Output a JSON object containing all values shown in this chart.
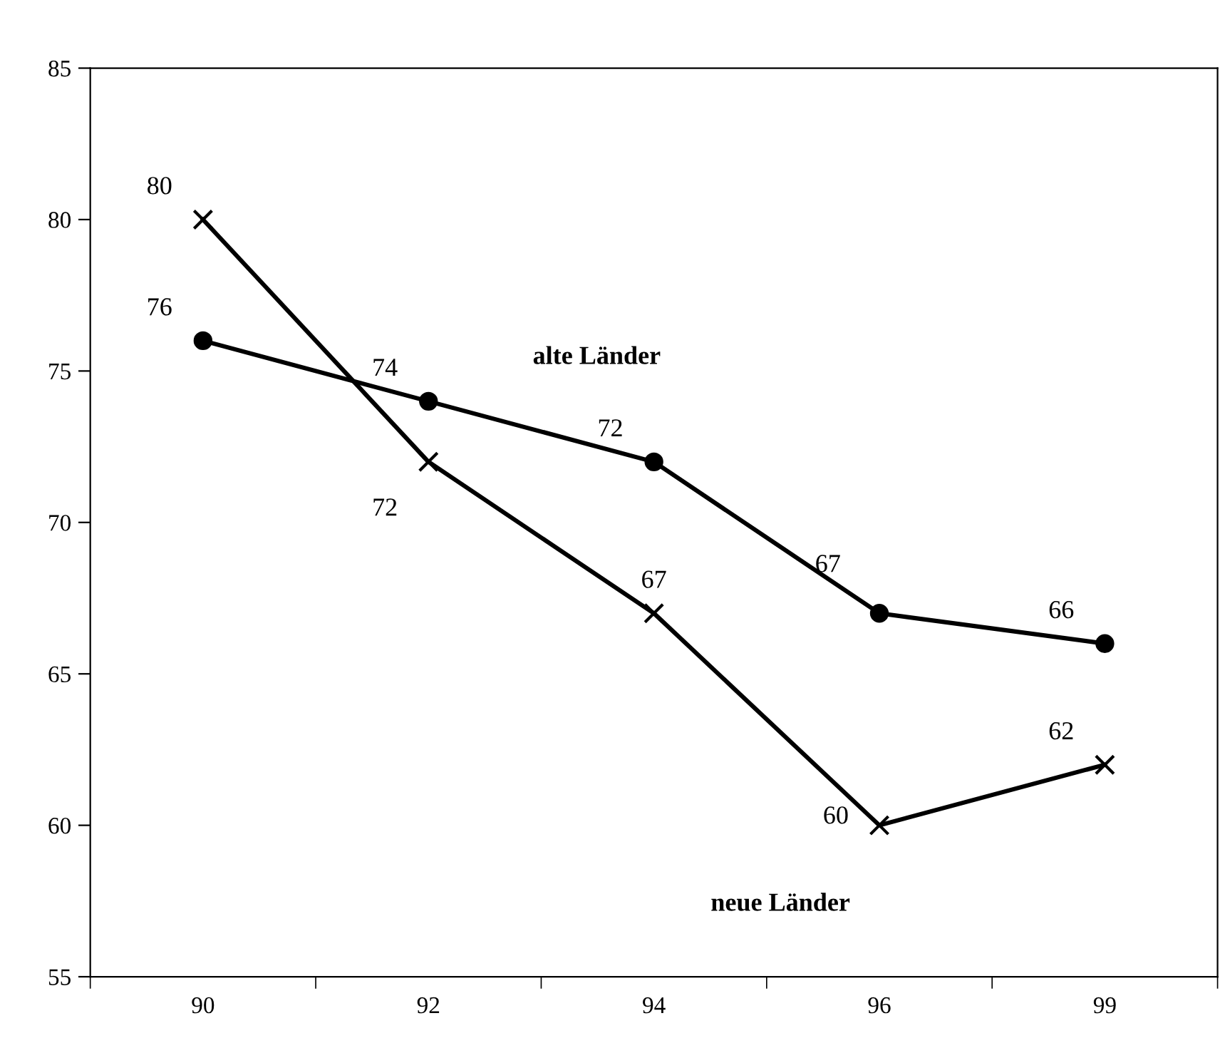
{
  "chart_data": {
    "type": "line",
    "categories": [
      "90",
      "92",
      "94",
      "96",
      "99"
    ],
    "series": [
      {
        "name": "alte Länder",
        "color": "#000000",
        "marker": "circle",
        "values": [
          76,
          74,
          72,
          67,
          66
        ]
      },
      {
        "name": "neue Länder",
        "color": "#000000",
        "marker": "cross",
        "values": [
          80,
          72,
          67,
          60,
          62
        ]
      }
    ],
    "ylim": [
      55,
      85
    ],
    "yticks": [
      55,
      60,
      65,
      70,
      75,
      80,
      85
    ],
    "grid": false,
    "legend": false,
    "data_labels": true,
    "line_style": "solid"
  }
}
